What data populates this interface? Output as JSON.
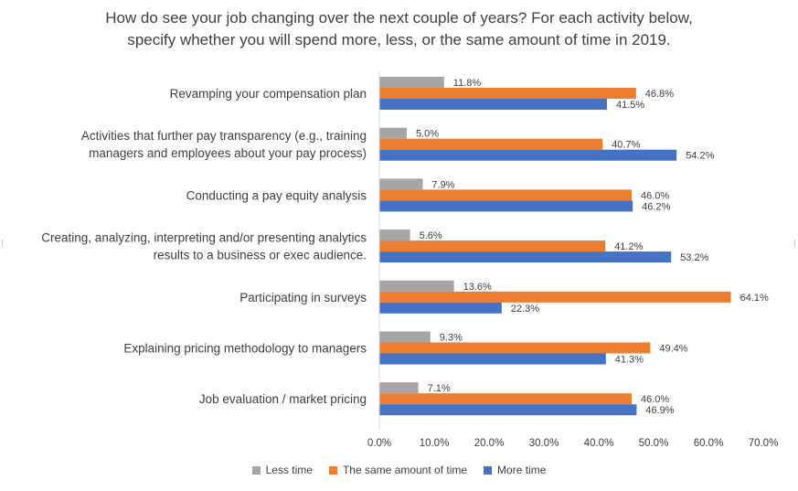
{
  "chart_data": {
    "type": "bar",
    "orientation": "horizontal",
    "title_lines": [
      "How do see your job changing over the next couple of years? For each activity below,",
      "specify whether you will spend more, less, or the same amount of time in 2019."
    ],
    "categories": [
      [
        "Revamping your compensation plan"
      ],
      [
        "Activities that further pay transparency (e.g., training",
        "managers and employees about your pay process)"
      ],
      [
        "Conducting a pay equity analysis"
      ],
      [
        "Creating, analyzing, interpreting and/or presenting analytics",
        "results to a business or exec audience."
      ],
      [
        "Participating in surveys"
      ],
      [
        "Explaining pricing methodology to managers"
      ],
      [
        "Job evaluation / market pricing"
      ]
    ],
    "series": [
      {
        "name": "Less time",
        "color": "#a5a5a5",
        "values": [
          11.8,
          5.0,
          7.9,
          5.6,
          13.6,
          9.3,
          7.1
        ],
        "labels": [
          "11.8%",
          "5.0%",
          "7.9%",
          "5.6%",
          "13.6%",
          "9.3%",
          "7.1%"
        ]
      },
      {
        "name": "The same amount of time",
        "color": "#ed7d31",
        "values": [
          46.8,
          40.7,
          46.0,
          41.2,
          64.1,
          49.4,
          46.0
        ],
        "labels": [
          "46.8%",
          "40.7%",
          "46.0%",
          "41.2%",
          "64.1%",
          "49.4%",
          "46.0%"
        ]
      },
      {
        "name": "More time",
        "color": "#4472c4",
        "values": [
          41.5,
          54.2,
          46.2,
          53.2,
          22.3,
          41.3,
          46.9
        ],
        "labels": [
          "41.5%",
          "54.2%",
          "46.2%",
          "53.2%",
          "22.3%",
          "41.3%",
          "46.9%"
        ]
      }
    ],
    "xlim": [
      0,
      70
    ],
    "x_ticks": [
      0,
      10,
      20,
      30,
      40,
      50,
      60,
      70
    ],
    "x_tick_labels": [
      "0.0%",
      "10.0%",
      "20.0%",
      "30.0%",
      "40.0%",
      "50.0%",
      "60.0%",
      "70.0%"
    ],
    "legend": [
      "Less time",
      "The same amount of time",
      "More time"
    ],
    "legend_position": "bottom",
    "grid": false
  }
}
